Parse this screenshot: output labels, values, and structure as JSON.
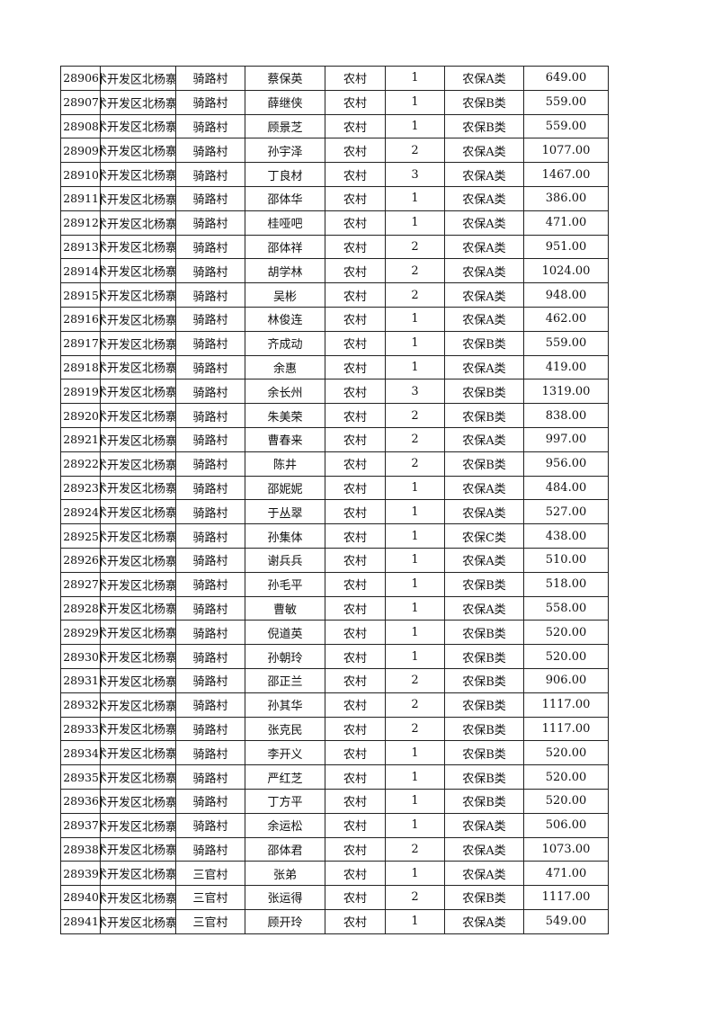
{
  "rows": [
    {
      "id": "28906",
      "region": "术开发区北杨寨",
      "village": "骑路村",
      "name": "蔡保英",
      "type": "农村",
      "count": "1",
      "category": "农保A类",
      "amount": "649.00"
    },
    {
      "id": "28907",
      "region": "术开发区北杨寨",
      "village": "骑路村",
      "name": "薛继侠",
      "type": "农村",
      "count": "1",
      "category": "农保B类",
      "amount": "559.00"
    },
    {
      "id": "28908",
      "region": "术开发区北杨寨",
      "village": "骑路村",
      "name": "顾景芝",
      "type": "农村",
      "count": "1",
      "category": "农保B类",
      "amount": "559.00"
    },
    {
      "id": "28909",
      "region": "术开发区北杨寨",
      "village": "骑路村",
      "name": "孙宇泽",
      "type": "农村",
      "count": "2",
      "category": "农保A类",
      "amount": "1077.00"
    },
    {
      "id": "28910",
      "region": "术开发区北杨寨",
      "village": "骑路村",
      "name": "丁良材",
      "type": "农村",
      "count": "3",
      "category": "农保A类",
      "amount": "1467.00"
    },
    {
      "id": "28911",
      "region": "术开发区北杨寨",
      "village": "骑路村",
      "name": "邵体华",
      "type": "农村",
      "count": "1",
      "category": "农保A类",
      "amount": "386.00"
    },
    {
      "id": "28912",
      "region": "术开发区北杨寨",
      "village": "骑路村",
      "name": "桂哑吧",
      "type": "农村",
      "count": "1",
      "category": "农保A类",
      "amount": "471.00"
    },
    {
      "id": "28913",
      "region": "术开发区北杨寨",
      "village": "骑路村",
      "name": "邵体祥",
      "type": "农村",
      "count": "2",
      "category": "农保A类",
      "amount": "951.00"
    },
    {
      "id": "28914",
      "region": "术开发区北杨寨",
      "village": "骑路村",
      "name": "胡学林",
      "type": "农村",
      "count": "2",
      "category": "农保A类",
      "amount": "1024.00"
    },
    {
      "id": "28915",
      "region": "术开发区北杨寨",
      "village": "骑路村",
      "name": "吴彬",
      "type": "农村",
      "count": "2",
      "category": "农保A类",
      "amount": "948.00"
    },
    {
      "id": "28916",
      "region": "术开发区北杨寨",
      "village": "骑路村",
      "name": "林俊连",
      "type": "农村",
      "count": "1",
      "category": "农保A类",
      "amount": "462.00"
    },
    {
      "id": "28917",
      "region": "术开发区北杨寨",
      "village": "骑路村",
      "name": "齐成动",
      "type": "农村",
      "count": "1",
      "category": "农保B类",
      "amount": "559.00"
    },
    {
      "id": "28918",
      "region": "术开发区北杨寨",
      "village": "骑路村",
      "name": "余惠",
      "type": "农村",
      "count": "1",
      "category": "农保A类",
      "amount": "419.00"
    },
    {
      "id": "28919",
      "region": "术开发区北杨寨",
      "village": "骑路村",
      "name": "余长州",
      "type": "农村",
      "count": "3",
      "category": "农保B类",
      "amount": "1319.00"
    },
    {
      "id": "28920",
      "region": "术开发区北杨寨",
      "village": "骑路村",
      "name": "朱美荣",
      "type": "农村",
      "count": "2",
      "category": "农保B类",
      "amount": "838.00"
    },
    {
      "id": "28921",
      "region": "术开发区北杨寨",
      "village": "骑路村",
      "name": "曹春来",
      "type": "农村",
      "count": "2",
      "category": "农保A类",
      "amount": "997.00"
    },
    {
      "id": "28922",
      "region": "术开发区北杨寨",
      "village": "骑路村",
      "name": "陈井",
      "type": "农村",
      "count": "2",
      "category": "农保B类",
      "amount": "956.00"
    },
    {
      "id": "28923",
      "region": "术开发区北杨寨",
      "village": "骑路村",
      "name": "邵妮妮",
      "type": "农村",
      "count": "1",
      "category": "农保A类",
      "amount": "484.00"
    },
    {
      "id": "28924",
      "region": "术开发区北杨寨",
      "village": "骑路村",
      "name": "于丛翠",
      "type": "农村",
      "count": "1",
      "category": "农保A类",
      "amount": "527.00"
    },
    {
      "id": "28925",
      "region": "术开发区北杨寨",
      "village": "骑路村",
      "name": "孙集体",
      "type": "农村",
      "count": "1",
      "category": "农保C类",
      "amount": "438.00"
    },
    {
      "id": "28926",
      "region": "术开发区北杨寨",
      "village": "骑路村",
      "name": "谢兵兵",
      "type": "农村",
      "count": "1",
      "category": "农保A类",
      "amount": "510.00"
    },
    {
      "id": "28927",
      "region": "术开发区北杨寨",
      "village": "骑路村",
      "name": "孙毛平",
      "type": "农村",
      "count": "1",
      "category": "农保B类",
      "amount": "518.00"
    },
    {
      "id": "28928",
      "region": "术开发区北杨寨",
      "village": "骑路村",
      "name": "曹敏",
      "type": "农村",
      "count": "1",
      "category": "农保A类",
      "amount": "558.00"
    },
    {
      "id": "28929",
      "region": "术开发区北杨寨",
      "village": "骑路村",
      "name": "倪道英",
      "type": "农村",
      "count": "1",
      "category": "农保B类",
      "amount": "520.00"
    },
    {
      "id": "28930",
      "region": "术开发区北杨寨",
      "village": "骑路村",
      "name": "孙朝玲",
      "type": "农村",
      "count": "1",
      "category": "农保B类",
      "amount": "520.00"
    },
    {
      "id": "28931",
      "region": "术开发区北杨寨",
      "village": "骑路村",
      "name": "邵正兰",
      "type": "农村",
      "count": "2",
      "category": "农保B类",
      "amount": "906.00"
    },
    {
      "id": "28932",
      "region": "术开发区北杨寨",
      "village": "骑路村",
      "name": "孙其华",
      "type": "农村",
      "count": "2",
      "category": "农保B类",
      "amount": "1117.00"
    },
    {
      "id": "28933",
      "region": "术开发区北杨寨",
      "village": "骑路村",
      "name": "张克民",
      "type": "农村",
      "count": "2",
      "category": "农保B类",
      "amount": "1117.00"
    },
    {
      "id": "28934",
      "region": "术开发区北杨寨",
      "village": "骑路村",
      "name": "李开义",
      "type": "农村",
      "count": "1",
      "category": "农保B类",
      "amount": "520.00"
    },
    {
      "id": "28935",
      "region": "术开发区北杨寨",
      "village": "骑路村",
      "name": "严红芝",
      "type": "农村",
      "count": "1",
      "category": "农保B类",
      "amount": "520.00"
    },
    {
      "id": "28936",
      "region": "术开发区北杨寨",
      "village": "骑路村",
      "name": "丁方平",
      "type": "农村",
      "count": "1",
      "category": "农保B类",
      "amount": "520.00"
    },
    {
      "id": "28937",
      "region": "术开发区北杨寨",
      "village": "骑路村",
      "name": "余运松",
      "type": "农村",
      "count": "1",
      "category": "农保A类",
      "amount": "506.00"
    },
    {
      "id": "28938",
      "region": "术开发区北杨寨",
      "village": "骑路村",
      "name": "邵体君",
      "type": "农村",
      "count": "2",
      "category": "农保A类",
      "amount": "1073.00"
    },
    {
      "id": "28939",
      "region": "术开发区北杨寨",
      "village": "三官村",
      "name": "张弟",
      "type": "农村",
      "count": "1",
      "category": "农保A类",
      "amount": "471.00"
    },
    {
      "id": "28940",
      "region": "术开发区北杨寨",
      "village": "三官村",
      "name": "张运得",
      "type": "农村",
      "count": "2",
      "category": "农保B类",
      "amount": "1117.00"
    },
    {
      "id": "28941",
      "region": "术开发区北杨寨",
      "village": "三官村",
      "name": "顾开玲",
      "type": "农村",
      "count": "1",
      "category": "农保A类",
      "amount": "549.00"
    }
  ]
}
